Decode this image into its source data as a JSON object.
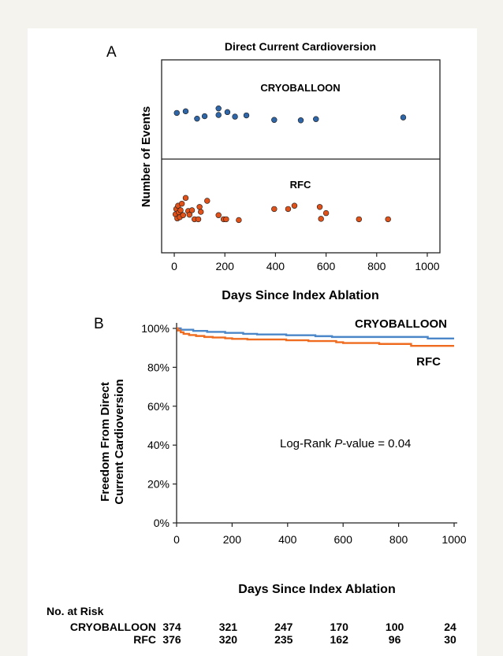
{
  "colors": {
    "cryo": "#4a86c8",
    "rfc": "#ef6b1f",
    "cryo_dot": "#2f66a8",
    "rfc_dot": "#e0521a",
    "background": "#f4f3ee"
  },
  "risk_table": {
    "title": "No. at Risk",
    "cryo_label": "CRYOBALLOON",
    "rfc_label": "RFC",
    "days": [
      0,
      200,
      400,
      600,
      800,
      1000
    ],
    "cryo": [
      "374",
      "321",
      "247",
      "170",
      "100",
      "24"
    ],
    "rfc": [
      "376",
      "320",
      "235",
      "162",
      "96",
      "30"
    ]
  },
  "chart_data": [
    {
      "type": "scatter",
      "panel_label": "A",
      "title": "Direct Current Cardioversion",
      "xlabel": "Days Since Index Ablation",
      "ylabel": "Number of Events",
      "xlim": [
        -50,
        1050
      ],
      "xticks": [
        0,
        200,
        400,
        600,
        800,
        1000
      ],
      "series": [
        {
          "name": "CRYOBALLOON",
          "points": [
            [
              10,
              0.5
            ],
            [
              45,
              0.9
            ],
            [
              90,
              -0.9
            ],
            [
              120,
              -0.3
            ],
            [
              175,
              1.6
            ],
            [
              175,
              0.0
            ],
            [
              210,
              0.7
            ],
            [
              240,
              -0.4
            ],
            [
              285,
              -0.1
            ],
            [
              395,
              -1.2
            ],
            [
              500,
              -1.3
            ],
            [
              560,
              -1.0
            ],
            [
              905,
              -0.6
            ]
          ]
        },
        {
          "name": "RFC",
          "points": [
            [
              5,
              -0.8
            ],
            [
              8,
              0.5
            ],
            [
              12,
              -1.8
            ],
            [
              15,
              1.3
            ],
            [
              18,
              -0.3
            ],
            [
              22,
              -1.5
            ],
            [
              25,
              0.2
            ],
            [
              30,
              1.8
            ],
            [
              35,
              -1.0
            ],
            [
              45,
              3.2
            ],
            [
              55,
              0.0
            ],
            [
              60,
              -0.9
            ],
            [
              70,
              0.2
            ],
            [
              80,
              -2.0
            ],
            [
              95,
              -2.0
            ],
            [
              100,
              1.0
            ],
            [
              105,
              -0.2
            ],
            [
              130,
              2.5
            ],
            [
              175,
              -1.0
            ],
            [
              195,
              -2.0
            ],
            [
              205,
              -2.0
            ],
            [
              255,
              -2.2
            ],
            [
              395,
              0.5
            ],
            [
              450,
              0.5
            ],
            [
              475,
              1.3
            ],
            [
              575,
              1.0
            ],
            [
              580,
              -1.9
            ],
            [
              600,
              -0.5
            ],
            [
              730,
              -2.0
            ],
            [
              845,
              -2.0
            ]
          ]
        }
      ]
    },
    {
      "type": "line",
      "panel_label": "B",
      "xlabel": "Days Since Index Ablation",
      "ylabel_lines": [
        "Freedom From Direct",
        "Current Cardioversion"
      ],
      "xlim": [
        0,
        1000
      ],
      "ylim": [
        0,
        100
      ],
      "xticks": [
        0,
        200,
        400,
        600,
        800,
        1000
      ],
      "yticks": [
        "0%",
        "20%",
        "40%",
        "60%",
        "80%",
        "100%"
      ],
      "annotation_prefix": "Log-Rank ",
      "annotation_italic": "P",
      "annotation_suffix": "-value = 0.04",
      "series": [
        {
          "name": "CRYOBALLOON",
          "steps": [
            [
              0,
              100
            ],
            [
              15,
              99.3
            ],
            [
              60,
              98.7
            ],
            [
              110,
              98.2
            ],
            [
              175,
              97.7
            ],
            [
              240,
              97.2
            ],
            [
              290,
              96.9
            ],
            [
              395,
              96.5
            ],
            [
              500,
              96.0
            ],
            [
              560,
              95.6
            ],
            [
              905,
              94.8
            ],
            [
              1000,
              94.8
            ]
          ]
        },
        {
          "name": "RFC",
          "steps": [
            [
              0,
              100
            ],
            [
              5,
              98.9
            ],
            [
              15,
              98.0
            ],
            [
              25,
              97.2
            ],
            [
              45,
              96.6
            ],
            [
              70,
              96.1
            ],
            [
              100,
              95.6
            ],
            [
              130,
              95.3
            ],
            [
              175,
              94.9
            ],
            [
              200,
              94.6
            ],
            [
              255,
              94.3
            ],
            [
              395,
              93.9
            ],
            [
              475,
              93.5
            ],
            [
              575,
              92.9
            ],
            [
              600,
              92.5
            ],
            [
              730,
              92.0
            ],
            [
              845,
              91.0
            ],
            [
              1000,
              91.0
            ]
          ]
        }
      ]
    }
  ]
}
